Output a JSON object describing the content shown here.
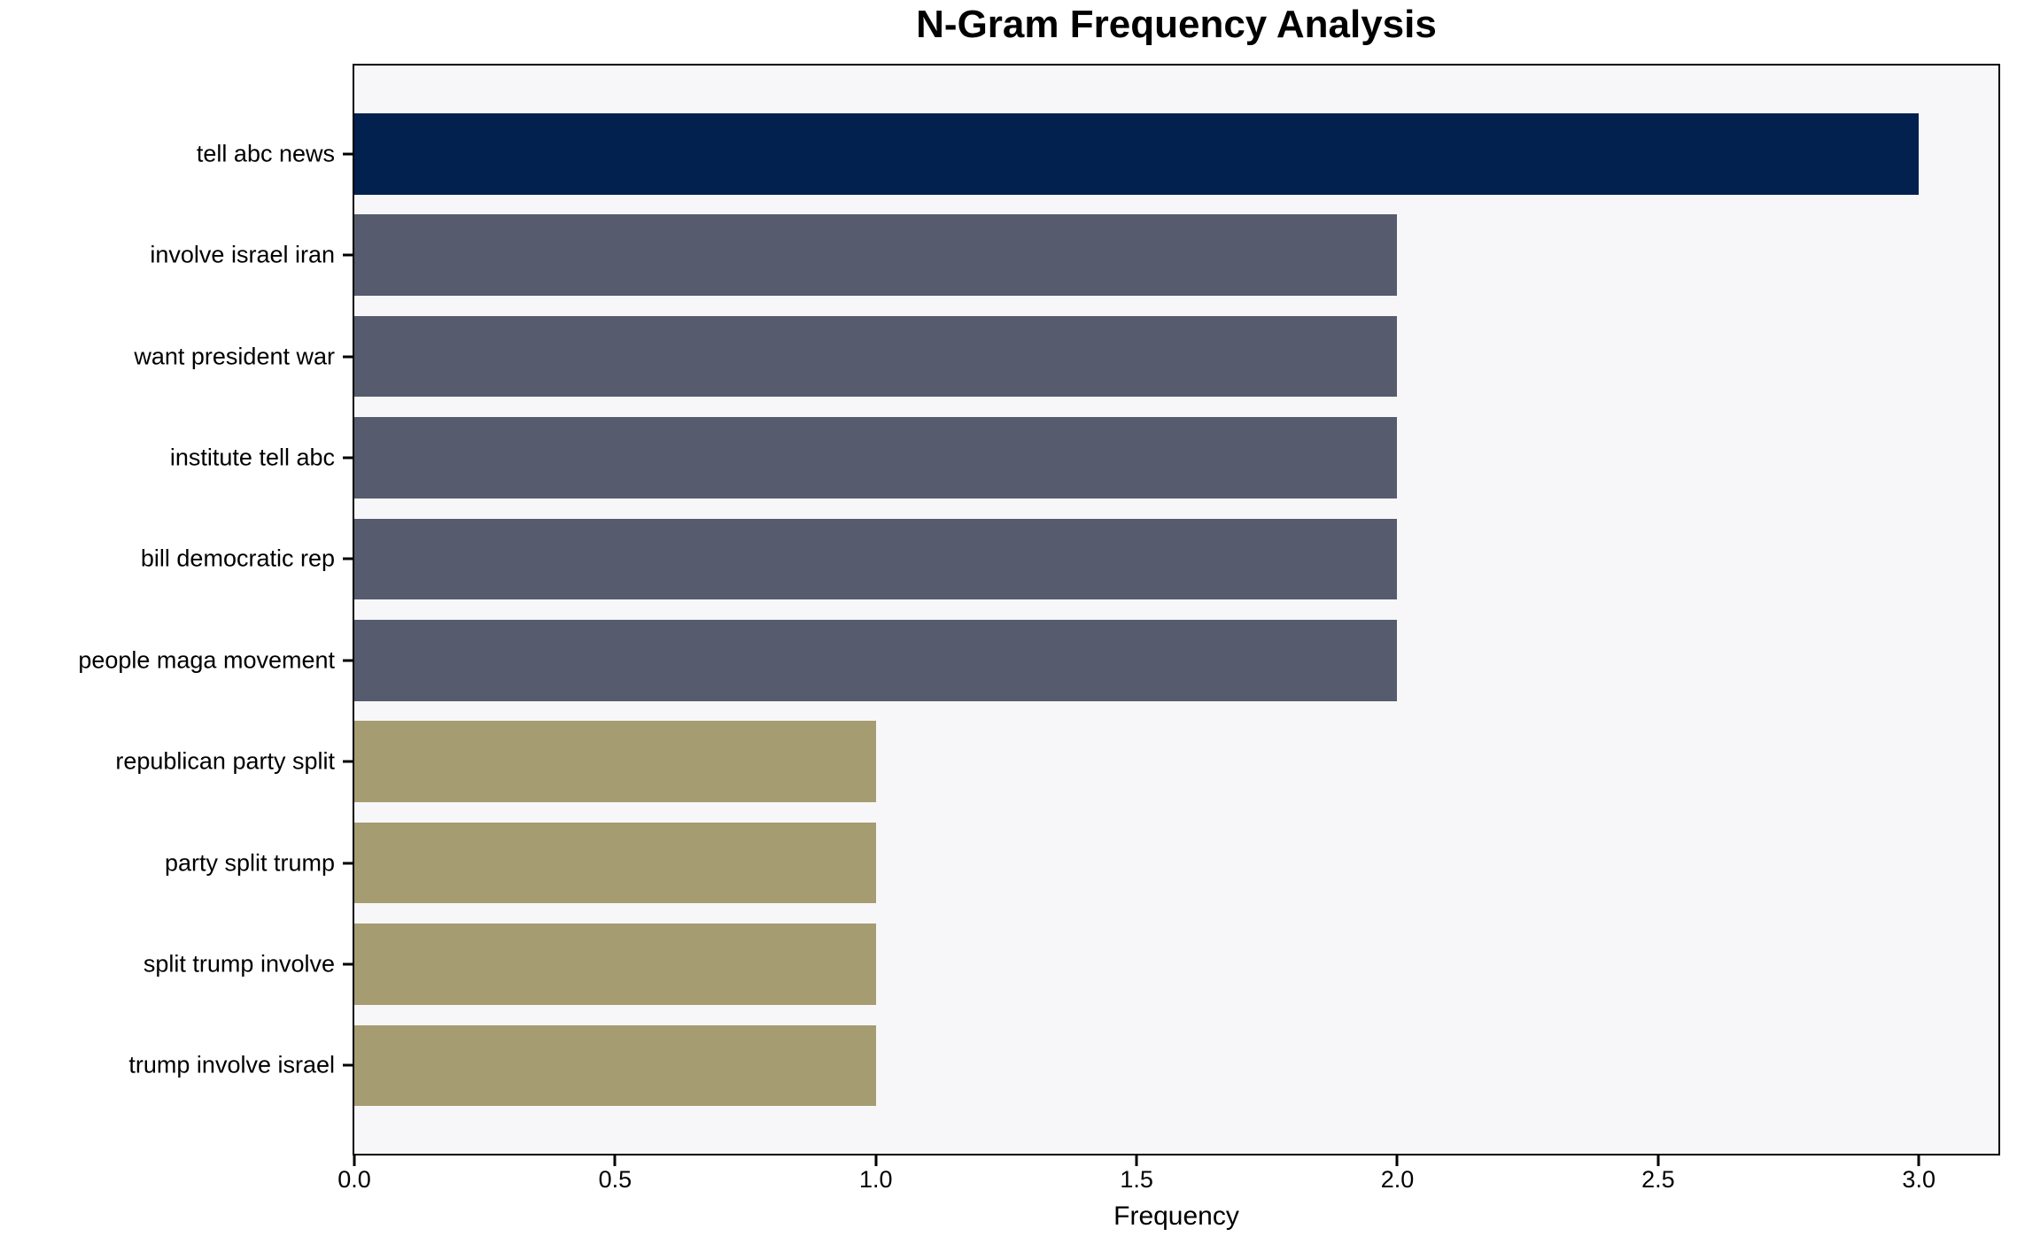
{
  "title": "N-Gram Frequency Analysis",
  "chart_data": {
    "type": "bar",
    "orientation": "horizontal",
    "title": "N-Gram Frequency Analysis",
    "xlabel": "Frequency",
    "ylabel": "",
    "categories": [
      "tell abc news",
      "involve israel iran",
      "want president war",
      "institute tell abc",
      "bill democratic rep",
      "people maga movement",
      "republican party split",
      "party split trump",
      "split trump involve",
      "trump involve israel"
    ],
    "values": [
      3,
      2,
      2,
      2,
      2,
      2,
      1,
      1,
      1,
      1
    ],
    "bar_colors": [
      "#02214e",
      "#565c6e",
      "#565c6e",
      "#565c6e",
      "#565c6e",
      "#565c6e",
      "#a69c72",
      "#a69c72",
      "#a69c72",
      "#a69c72"
    ],
    "xlim": [
      0,
      3.1525
    ],
    "xticks": [
      0.0,
      0.5,
      1.0,
      1.5,
      2.0,
      2.5,
      3.0
    ],
    "xtick_labels": [
      "0.0",
      "0.5",
      "1.0",
      "1.5",
      "2.0",
      "2.5",
      "3.0"
    ],
    "grid": false,
    "legend": false,
    "colors": {
      "highlight_bar": "#02214e",
      "mid_bar": "#565c6e",
      "low_bar": "#a69c72",
      "plot_background": "#f7f7f9",
      "figure_background": "#ffffff",
      "spine": "#000000",
      "text": "#000000"
    }
  }
}
